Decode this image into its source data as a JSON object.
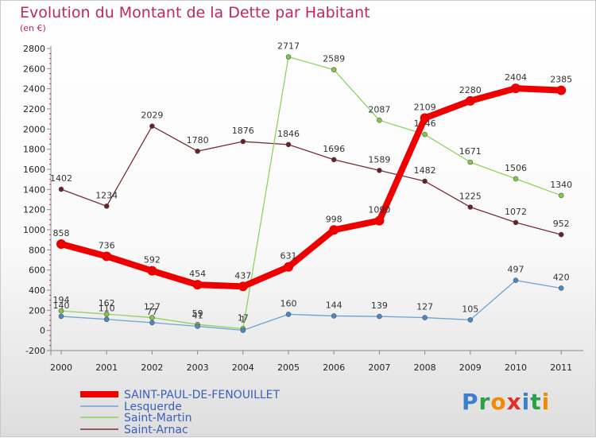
{
  "title": "Evolution du Montant de la Dette par Habitant",
  "subtitle": "(en €)",
  "logo": "Proxiti",
  "chart_data": {
    "type": "line",
    "x": [
      "2000",
      "2001",
      "2002",
      "2003",
      "2004",
      "2005",
      "2006",
      "2007",
      "2008",
      "2009",
      "2010",
      "2011"
    ],
    "ylim": [
      -200,
      2800
    ],
    "yticks": [
      -200,
      0,
      200,
      400,
      600,
      800,
      1000,
      1200,
      1400,
      1600,
      1800,
      2000,
      2200,
      2400,
      2600,
      2800
    ],
    "grid": false,
    "legend": "bottom-left",
    "series": [
      {
        "name": "SAINT-PAUL-DE-FENOUILLET",
        "color": "#ee0000",
        "marker": "#ee0000",
        "width": 8,
        "values": [
          858,
          736,
          592,
          454,
          437,
          631,
          998,
          1090,
          2109,
          2280,
          2404,
          2385
        ]
      },
      {
        "name": "Lesquerde",
        "color": "#6fa3cf",
        "marker": "#4a88c8",
        "width": 1.3,
        "values": [
          140,
          110,
          77,
          41,
          1,
          160,
          144,
          139,
          127,
          105,
          497,
          420
        ]
      },
      {
        "name": "Saint-Martin",
        "color": "#8ed45c",
        "marker": "#7fcb45",
        "width": 1.3,
        "values": [
          194,
          162,
          127,
          59,
          17,
          2717,
          2589,
          2087,
          1946,
          1671,
          1506,
          1340
        ]
      },
      {
        "name": "Saint-Arnac",
        "color": "#7b2c35",
        "marker": "#6a1f28",
        "width": 1.3,
        "values": [
          1402,
          1234,
          2029,
          1780,
          1876,
          1846,
          1696,
          1589,
          1482,
          1225,
          1072,
          952
        ]
      }
    ]
  }
}
